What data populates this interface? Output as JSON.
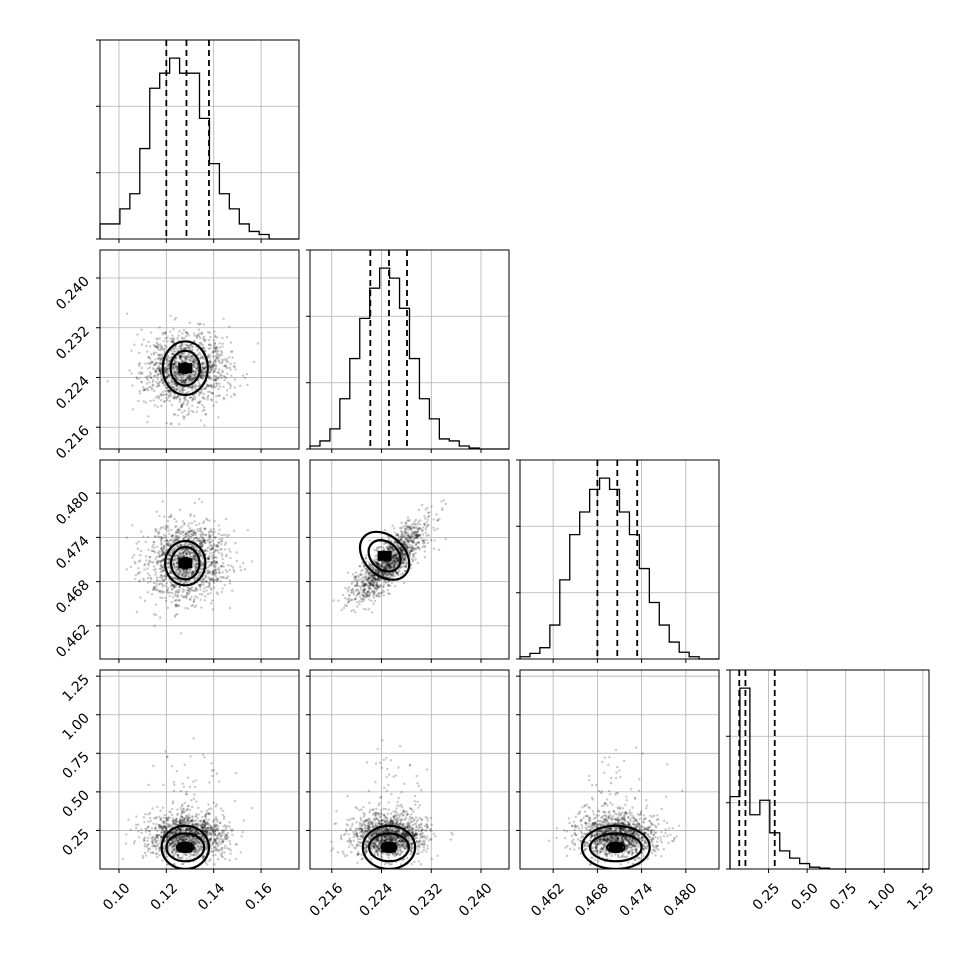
{
  "chart_data": {
    "type": "corner",
    "parameters": [
      {
        "id": "p0",
        "range": [
          0.092,
          0.176
        ],
        "ticks": [
          0.1,
          0.12,
          0.14,
          0.16
        ],
        "tick_labels": [
          "0.10",
          "0.12",
          "0.14",
          "0.16"
        ],
        "quantiles": [
          0.12,
          0.1285,
          0.138
        ],
        "mean": 0.1285,
        "sd": 0.0085,
        "histogram": {
          "edges": [
            0.092,
            0.0962,
            0.1004,
            0.1046,
            0.1088,
            0.113,
            0.1172,
            0.1214,
            0.1256,
            0.1298,
            0.134,
            0.1382,
            0.1424,
            0.1466,
            0.1508,
            0.155,
            0.1592,
            0.1634,
            0.1676,
            0.1718,
            0.176
          ],
          "counts": [
            1,
            1,
            2,
            3,
            6,
            10,
            11,
            12,
            11,
            11,
            8,
            5,
            3,
            2,
            1,
            0.5,
            0.3,
            0,
            0,
            0
          ]
        }
      },
      {
        "id": "p1",
        "range": [
          0.2125,
          0.2445
        ],
        "ticks": [
          0.216,
          0.224,
          0.232,
          0.24
        ],
        "tick_labels": [
          "0.216",
          "0.224",
          "0.232",
          "0.240"
        ],
        "quantiles": [
          0.2222,
          0.2252,
          0.2281
        ],
        "mean": 0.2252,
        "sd": 0.003,
        "histogram": {
          "edges": [
            0.2125,
            0.2141,
            0.2157,
            0.2173,
            0.2189,
            0.2205,
            0.2221,
            0.2237,
            0.2253,
            0.2269,
            0.2285,
            0.2301,
            0.2317,
            0.2333,
            0.2349,
            0.2365,
            0.2381,
            0.2397,
            0.2413,
            0.2429,
            0.2445
          ],
          "counts": [
            0.3,
            0.8,
            2,
            5,
            9,
            13,
            16,
            18,
            17,
            14,
            9,
            5,
            3,
            1,
            0.8,
            0.3,
            0.1,
            0,
            0,
            0
          ]
        }
      },
      {
        "id": "p2",
        "range": [
          0.4575,
          0.4845
        ],
        "ticks": [
          0.462,
          0.468,
          0.474,
          0.48
        ],
        "tick_labels": [
          "0.462",
          "0.468",
          "0.474",
          "0.480"
        ],
        "quantiles": [
          0.468,
          0.4707,
          0.4734
        ],
        "mean": 0.4707,
        "sd": 0.0027,
        "histogram": {
          "edges": [
            0.4575,
            0.45885,
            0.4602,
            0.46155,
            0.4629,
            0.46425,
            0.4656,
            0.46695,
            0.4683,
            0.46965,
            0.471,
            0.47235,
            0.4737,
            0.47505,
            0.4764,
            0.47775,
            0.4791,
            0.48045,
            0.4818,
            0.48315,
            0.4845
          ],
          "counts": [
            0.2,
            0.5,
            1,
            3,
            7,
            11,
            13,
            15,
            16,
            15,
            13,
            11,
            8,
            5,
            3,
            1.5,
            0.6,
            0.2,
            0,
            0
          ]
        }
      },
      {
        "id": "p3",
        "range": [
          0.0,
          1.29
        ],
        "ticks": [
          0.25,
          0.5,
          0.75,
          1.0,
          1.25
        ],
        "tick_labels": [
          "0.25",
          "0.50",
          "0.75",
          "1.00",
          "1.25"
        ],
        "quantiles": [
          0.06,
          0.1,
          0.29
        ],
        "mean": 0.17,
        "sd": 0.12,
        "histogram": {
          "edges": [
            0.0,
            0.0645,
            0.129,
            0.1935,
            0.258,
            0.3225,
            0.387,
            0.4515,
            0.516,
            0.5805,
            0.645,
            0.7095,
            0.774,
            0.8385,
            0.903,
            0.9675,
            1.032,
            1.0965,
            1.161,
            1.2255,
            1.29
          ],
          "counts": [
            40,
            100,
            30,
            38,
            20,
            10,
            6,
            3,
            1,
            0.5,
            0,
            0,
            0,
            0,
            0,
            0,
            0,
            0,
            0,
            0
          ]
        }
      }
    ],
    "pairs": [
      {
        "x": 0,
        "y": 1,
        "density_peak": [
          0.128,
          0.2255
        ],
        "contour_radii": [
          [
            0.0017,
            0.0008
          ],
          [
            0.0062,
            0.0028
          ],
          [
            0.0095,
            0.0043
          ]
        ],
        "rho": 0.05
      },
      {
        "x": 0,
        "y": 2,
        "density_peak": [
          0.128,
          0.4705
        ],
        "contour_radii": [
          [
            0.0022,
            0.0007
          ],
          [
            0.006,
            0.0022
          ],
          [
            0.0085,
            0.003
          ]
        ],
        "rho": 0.08
      },
      {
        "x": 1,
        "y": 2,
        "density_peak": [
          0.2245,
          0.4715
        ],
        "contour_radii": [
          [
            0.0006,
            0.0006
          ],
          [
            0.0022,
            0.0024
          ],
          [
            0.0032,
            0.0038
          ]
        ],
        "rho": 0.82
      },
      {
        "x": 0,
        "y": 3,
        "density_peak": [
          0.128,
          0.14
        ],
        "contour_radii": [
          [
            0.0035,
            0.03
          ],
          [
            0.008,
            0.09
          ],
          [
            0.01,
            0.14
          ]
        ],
        "rho": 0.0
      },
      {
        "x": 1,
        "y": 3,
        "density_peak": [
          0.2252,
          0.14
        ],
        "contour_radii": [
          [
            0.0012,
            0.03
          ],
          [
            0.0032,
            0.09
          ],
          [
            0.0042,
            0.14
          ]
        ],
        "rho": 0.0
      },
      {
        "x": 2,
        "y": 3,
        "density_peak": [
          0.4705,
          0.14
        ],
        "contour_radii": [
          [
            0.0012,
            0.03
          ],
          [
            0.0035,
            0.09
          ],
          [
            0.0046,
            0.14
          ]
        ],
        "rho": 0.0
      }
    ],
    "title": "",
    "xlabel": "",
    "ylabel": "",
    "grid": true,
    "colors": {
      "line": "#000000",
      "grid": "#b0b0b0",
      "points": "#000000"
    }
  }
}
